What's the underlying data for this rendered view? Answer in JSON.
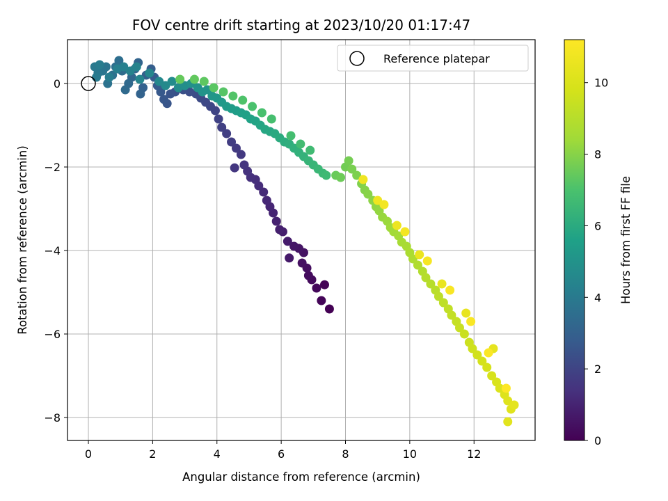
{
  "chart_data": {
    "type": "scatter",
    "title": "FOV centre drift starting at 2023/10/20 01:17:47",
    "xlabel": "Angular distance from reference (arcmin)",
    "ylabel": "Rotation from reference (arcmin)",
    "xlim": [
      -0.65,
      13.9
    ],
    "ylim": [
      -8.55,
      1.05
    ],
    "xticks": [
      0,
      2,
      4,
      6,
      8,
      10,
      12
    ],
    "yticks": [
      0,
      -2,
      -4,
      -6,
      -8
    ],
    "grid": true,
    "legend": {
      "placement": "top-right",
      "entries": [
        "Reference platepar"
      ]
    },
    "reference_point": {
      "x": 0,
      "y": 0
    },
    "colorbar": {
      "label": "Hours from first FF file",
      "colormap": "viridis",
      "range": [
        0,
        11.2
      ],
      "ticks": [
        0,
        2,
        4,
        6,
        8,
        10
      ]
    },
    "series": [
      {
        "hours_start": 0,
        "hours_end": 11.2,
        "points": [
          [
            7.5,
            -5.4
          ],
          [
            7.35,
            -4.82
          ],
          [
            7.25,
            -5.2
          ],
          [
            7.1,
            -4.9
          ],
          [
            6.95,
            -4.7
          ],
          [
            6.85,
            -4.6
          ],
          [
            6.8,
            -4.42
          ],
          [
            6.65,
            -4.3
          ],
          [
            6.7,
            -4.05
          ],
          [
            6.55,
            -3.95
          ],
          [
            6.4,
            -3.9
          ],
          [
            6.25,
            -4.18
          ],
          [
            6.2,
            -3.78
          ],
          [
            6.05,
            -3.55
          ],
          [
            5.95,
            -3.5
          ],
          [
            5.85,
            -3.3
          ],
          [
            5.75,
            -3.1
          ],
          [
            5.65,
            -2.95
          ],
          [
            5.55,
            -2.8
          ],
          [
            5.45,
            -2.6
          ],
          [
            5.3,
            -2.45
          ],
          [
            5.2,
            -2.3
          ],
          [
            5.05,
            -2.25
          ],
          [
            4.95,
            -2.1
          ],
          [
            4.85,
            -1.95
          ],
          [
            4.55,
            -2.02
          ],
          [
            4.75,
            -1.7
          ],
          [
            4.6,
            -1.55
          ],
          [
            4.45,
            -1.4
          ],
          [
            4.3,
            -1.2
          ],
          [
            4.15,
            -1.05
          ],
          [
            4.05,
            -0.85
          ],
          [
            3.95,
            -0.65
          ],
          [
            3.8,
            -0.55
          ],
          [
            3.65,
            -0.45
          ],
          [
            3.5,
            -0.35
          ],
          [
            3.35,
            -0.25
          ],
          [
            3.15,
            -0.2
          ],
          [
            2.95,
            -0.15
          ],
          [
            2.7,
            -0.2
          ],
          [
            2.55,
            -0.25
          ],
          [
            2.45,
            -0.48
          ],
          [
            2.35,
            -0.38
          ],
          [
            2.25,
            -0.2
          ],
          [
            2.15,
            -0.05
          ],
          [
            2.05,
            0.15
          ],
          [
            1.95,
            0.35
          ],
          [
            1.8,
            0.2
          ],
          [
            1.7,
            -0.1
          ],
          [
            1.62,
            -0.25
          ],
          [
            1.55,
            0.5
          ],
          [
            1.45,
            0.35
          ],
          [
            1.35,
            0.15
          ],
          [
            1.25,
            0.0
          ],
          [
            1.15,
            -0.15
          ],
          [
            1.05,
            0.3
          ],
          [
            0.95,
            0.55
          ],
          [
            0.85,
            0.4
          ],
          [
            0.75,
            0.2
          ],
          [
            0.6,
            0.0
          ],
          [
            0.55,
            0.4
          ],
          [
            0.45,
            0.3
          ],
          [
            0.3,
            0.25
          ],
          [
            0.2,
            0.4
          ],
          [
            0.25,
            0.15
          ],
          [
            0.35,
            0.45
          ],
          [
            0.65,
            0.15
          ],
          [
            0.9,
            0.35
          ],
          [
            1.1,
            0.4
          ],
          [
            1.3,
            0.3
          ],
          [
            1.5,
            0.4
          ],
          [
            1.6,
            0.1
          ],
          [
            1.9,
            0.25
          ],
          [
            2.2,
            0.05
          ],
          [
            2.4,
            -0.05
          ],
          [
            2.6,
            0.05
          ],
          [
            2.8,
            -0.1
          ],
          [
            3.0,
            -0.05
          ],
          [
            3.2,
            0.0
          ],
          [
            3.4,
            -0.1
          ],
          [
            3.55,
            -0.2
          ],
          [
            3.7,
            -0.15
          ],
          [
            3.85,
            -0.3
          ],
          [
            4.0,
            -0.35
          ],
          [
            4.15,
            -0.45
          ],
          [
            4.3,
            -0.55
          ],
          [
            4.45,
            -0.6
          ],
          [
            4.6,
            -0.65
          ],
          [
            4.75,
            -0.7
          ],
          [
            4.9,
            -0.75
          ],
          [
            5.05,
            -0.85
          ],
          [
            5.2,
            -0.9
          ],
          [
            5.35,
            -1.0
          ],
          [
            5.5,
            -1.1
          ],
          [
            5.65,
            -1.15
          ],
          [
            5.8,
            -1.2
          ],
          [
            5.95,
            -1.3
          ],
          [
            6.1,
            -1.4
          ],
          [
            6.25,
            -1.45
          ],
          [
            6.4,
            -1.55
          ],
          [
            6.55,
            -1.65
          ],
          [
            6.7,
            -1.75
          ],
          [
            6.85,
            -1.85
          ],
          [
            7.0,
            -1.95
          ],
          [
            7.15,
            -2.05
          ],
          [
            7.3,
            -2.15
          ],
          [
            7.4,
            -2.2
          ],
          [
            6.9,
            -1.6
          ],
          [
            6.6,
            -1.45
          ],
          [
            6.3,
            -1.25
          ],
          [
            5.7,
            -0.85
          ],
          [
            5.4,
            -0.7
          ],
          [
            5.1,
            -0.55
          ],
          [
            4.8,
            -0.4
          ],
          [
            4.5,
            -0.3
          ],
          [
            4.2,
            -0.2
          ],
          [
            3.9,
            -0.1
          ],
          [
            3.6,
            0.05
          ],
          [
            3.3,
            0.1
          ],
          [
            2.85,
            0.1
          ],
          [
            7.7,
            -2.2
          ],
          [
            7.85,
            -2.25
          ],
          [
            8.0,
            -2.0
          ],
          [
            8.1,
            -1.85
          ],
          [
            8.2,
            -2.05
          ],
          [
            8.35,
            -2.2
          ],
          [
            8.5,
            -2.4
          ],
          [
            8.6,
            -2.55
          ],
          [
            8.7,
            -2.65
          ],
          [
            8.85,
            -2.8
          ],
          [
            8.95,
            -2.95
          ],
          [
            9.05,
            -3.05
          ],
          [
            9.15,
            -3.2
          ],
          [
            9.3,
            -3.3
          ],
          [
            9.4,
            -3.45
          ],
          [
            9.5,
            -3.55
          ],
          [
            9.65,
            -3.65
          ],
          [
            9.75,
            -3.8
          ],
          [
            9.9,
            -3.9
          ],
          [
            10.0,
            -4.05
          ],
          [
            10.1,
            -4.2
          ],
          [
            10.25,
            -4.35
          ],
          [
            10.4,
            -4.5
          ],
          [
            10.5,
            -4.65
          ],
          [
            10.65,
            -4.8
          ],
          [
            10.8,
            -4.95
          ],
          [
            10.9,
            -5.1
          ],
          [
            11.05,
            -5.25
          ],
          [
            11.2,
            -5.4
          ],
          [
            11.3,
            -5.55
          ],
          [
            11.45,
            -5.7
          ],
          [
            11.55,
            -5.85
          ],
          [
            11.7,
            -6.0
          ],
          [
            11.85,
            -6.2
          ],
          [
            11.95,
            -6.35
          ],
          [
            12.1,
            -6.5
          ],
          [
            12.25,
            -6.65
          ],
          [
            12.4,
            -6.8
          ],
          [
            12.55,
            -7.0
          ],
          [
            12.7,
            -7.15
          ],
          [
            12.8,
            -7.3
          ],
          [
            12.95,
            -7.45
          ],
          [
            13.05,
            -7.6
          ],
          [
            13.15,
            -7.8
          ],
          [
            13.05,
            -8.1
          ],
          [
            13.25,
            -7.7
          ],
          [
            12.6,
            -6.35
          ],
          [
            11.75,
            -5.5
          ],
          [
            11.0,
            -4.8
          ],
          [
            10.3,
            -4.1
          ],
          [
            9.6,
            -3.4
          ],
          [
            9.0,
            -2.8
          ],
          [
            8.55,
            -2.3
          ],
          [
            9.2,
            -2.9
          ],
          [
            9.85,
            -3.55
          ],
          [
            10.55,
            -4.25
          ],
          [
            11.25,
            -4.95
          ],
          [
            11.9,
            -5.7
          ],
          [
            12.45,
            -6.45
          ],
          [
            13.0,
            -7.3
          ]
        ]
      }
    ]
  }
}
